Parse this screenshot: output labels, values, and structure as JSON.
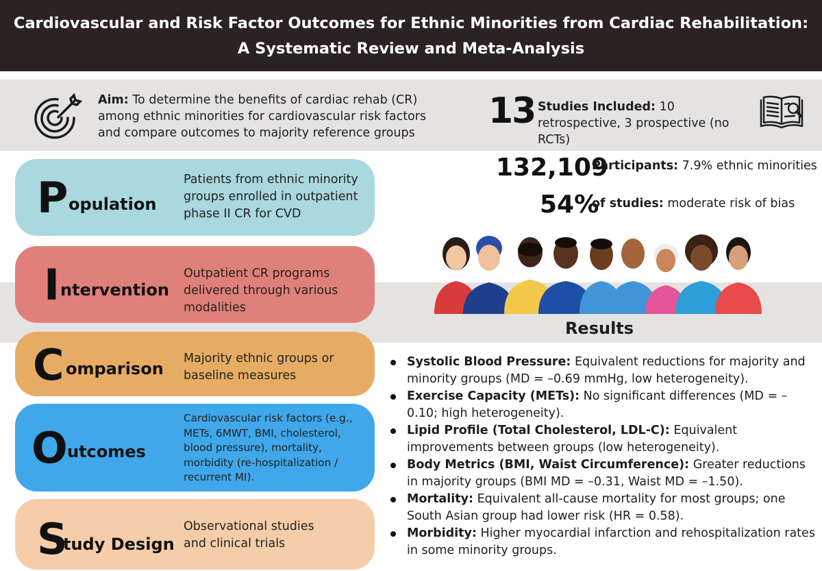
{
  "header": {
    "title_line1": "Cardiovascular and Risk Factor Outcomes for Ethnic Minorities from Cardiac Rehabilitation:",
    "title_line2": "A Systematic Review and Meta-Analysis"
  },
  "aim": {
    "icon": "target-arrow-icon",
    "label": "Aim:",
    "text": " To determine the benefits of cardiac rehab (CR) among ethnic minorities for cardiovascular risk factors and compare outcomes to majority reference groups"
  },
  "stats": {
    "studies": {
      "number": "13",
      "label": "Studies Included:",
      "text": " 10 retrospective, 3 prospective (no RCTs)",
      "icon": "book-magnifier-icon"
    },
    "participants": {
      "number": "132,109",
      "label": "Participants:",
      "text": " 7.9% ethnic minorities"
    },
    "bias": {
      "number": "54%",
      "label": "of studies:",
      "text": " moderate risk of bias"
    }
  },
  "pico": [
    {
      "letter": "P",
      "rest": "opulation",
      "description": "Patients from ethnic minority groups enrolled in outpatient phase II CR for CVD",
      "color": "#a9d8de"
    },
    {
      "letter": "I",
      "rest": "ntervention",
      "description": "Outpatient CR programs delivered through various modalities",
      "color": "#e0807a"
    },
    {
      "letter": "C",
      "rest": "omparison",
      "description": "Majority ethnic groups or baseline measures",
      "color": "#e7ac63"
    },
    {
      "letter": "O",
      "rest": "utcomes",
      "description": "Cardiovascular risk factors (e.g., METs, 6MWT, BMI, cholesterol, blood pressure), mortality, morbidity (re-hospitalization / recurrent MI).",
      "color": "#3fa7ea"
    },
    {
      "letter": "S",
      "rest": "tudy Design",
      "description": "Observational studies and clinical trials",
      "color": "#f6cda9"
    }
  ],
  "illustration": {
    "icon": "diverse-people-group-icon"
  },
  "results": {
    "title": "Results",
    "items": [
      {
        "label": "Systolic Blood Pressure:",
        "text": " Equivalent reductions for majority and minority groups (MD = –0.69 mmHg, low heterogeneity)."
      },
      {
        "label": "Exercise Capacity (METs):",
        "text": " No significant differences (MD = –0.10; high heterogeneity)."
      },
      {
        "label": "Lipid Profile (Total Cholesterol, LDL-C):",
        "text": " Equivalent improvements between groups (low heterogeneity)."
      },
      {
        "label": "Body Metrics (BMI, Waist Circumference):",
        "text": " Greater reductions in majority groups (BMI MD = –0.31, Waist MD = –1.50)."
      },
      {
        "label": "Mortality:",
        "text": " Equivalent all-cause mortality for most groups; one South Asian group had lower risk (HR = 0.58)."
      },
      {
        "label": "Morbidity:",
        "text": " Higher myocardial infarction and rehospitalization rates in some minority groups."
      }
    ]
  }
}
